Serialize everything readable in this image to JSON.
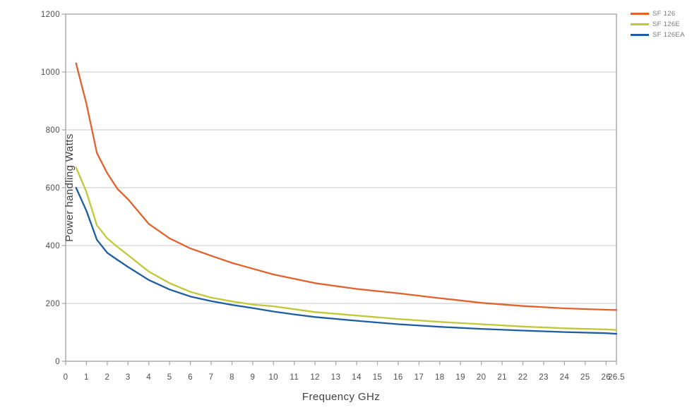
{
  "chart_data": {
    "type": "line",
    "title": "",
    "xlabel": "Frequency GHz",
    "ylabel": "Power handling Watts",
    "xlim": [
      0,
      26.5
    ],
    "ylim": [
      0,
      1200
    ],
    "x_ticks": [
      0,
      1,
      2,
      3,
      4,
      5,
      6,
      7,
      8,
      9,
      10,
      11,
      12,
      13,
      14,
      15,
      16,
      17,
      18,
      19,
      20,
      21,
      22,
      23,
      24,
      25,
      26,
      26.5
    ],
    "y_ticks": [
      0,
      200,
      400,
      600,
      800,
      1000,
      1200
    ],
    "grid": "horizontal gridlines every 200, full gray border box around plot",
    "legend_position": "top-right outside plot",
    "x": [
      0.5,
      1,
      1.5,
      2,
      2.5,
      3,
      4,
      5,
      6,
      7,
      8,
      9,
      10,
      11,
      12,
      14,
      16,
      18,
      20,
      22,
      24,
      26,
      26.5
    ],
    "series": [
      {
        "name": "SF 126",
        "color": "#e2612c",
        "values": [
          1030,
          890,
          720,
          650,
          595,
          560,
          475,
          425,
          390,
          365,
          340,
          320,
          300,
          285,
          270,
          250,
          235,
          218,
          202,
          191,
          183,
          178,
          177
        ]
      },
      {
        "name": "SF 126E",
        "color": "#c1c835",
        "values": [
          670,
          585,
          470,
          425,
          395,
          367,
          310,
          270,
          240,
          220,
          207,
          196,
          190,
          180,
          170,
          158,
          146,
          136,
          128,
          120,
          114,
          110,
          108
        ]
      },
      {
        "name": "SF 126EA",
        "color": "#1e5da0",
        "values": [
          600,
          520,
          420,
          375,
          350,
          326,
          281,
          248,
          224,
          208,
          195,
          184,
          172,
          162,
          153,
          140,
          128,
          119,
          112,
          106,
          101,
          97,
          95
        ]
      }
    ],
    "frame_color": "#a3a5a8",
    "gridline_color": "#c6c7c9",
    "text_color": "#4d4d4f"
  }
}
